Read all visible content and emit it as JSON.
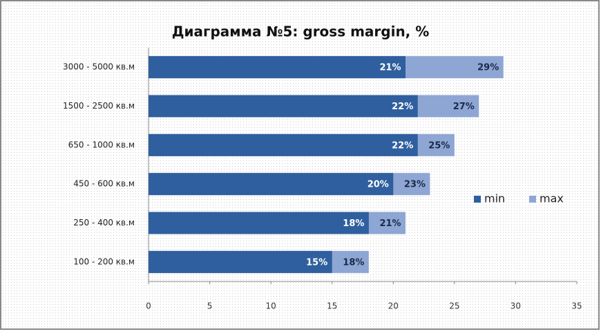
{
  "chart_data": {
    "type": "bar",
    "orientation": "horizontal",
    "title": "Диаграмма №5: gross margin, %",
    "categories": [
      "3000 - 5000 кв.м",
      "1500 - 2500 кв.м",
      "650 - 1000 кв.м",
      "450 - 600 кв.м",
      "250 - 400 кв.м",
      "100 - 200 кв.м"
    ],
    "series": [
      {
        "name": "min",
        "color": "#2f5f9e",
        "values": [
          21,
          22,
          22,
          20,
          18,
          15
        ],
        "value_labels": [
          "21%",
          "22%",
          "22%",
          "20%",
          "18%",
          "15%"
        ]
      },
      {
        "name": "max",
        "color": "#8ea6d3",
        "values": [
          29,
          27,
          25,
          23,
          21,
          18
        ],
        "value_labels": [
          "29%",
          "27%",
          "25%",
          "23%",
          "21%",
          "18%"
        ]
      }
    ],
    "xlim": [
      0,
      35
    ],
    "xticks": [
      0,
      5,
      10,
      15,
      20,
      25,
      30,
      35
    ],
    "legend": "right"
  }
}
